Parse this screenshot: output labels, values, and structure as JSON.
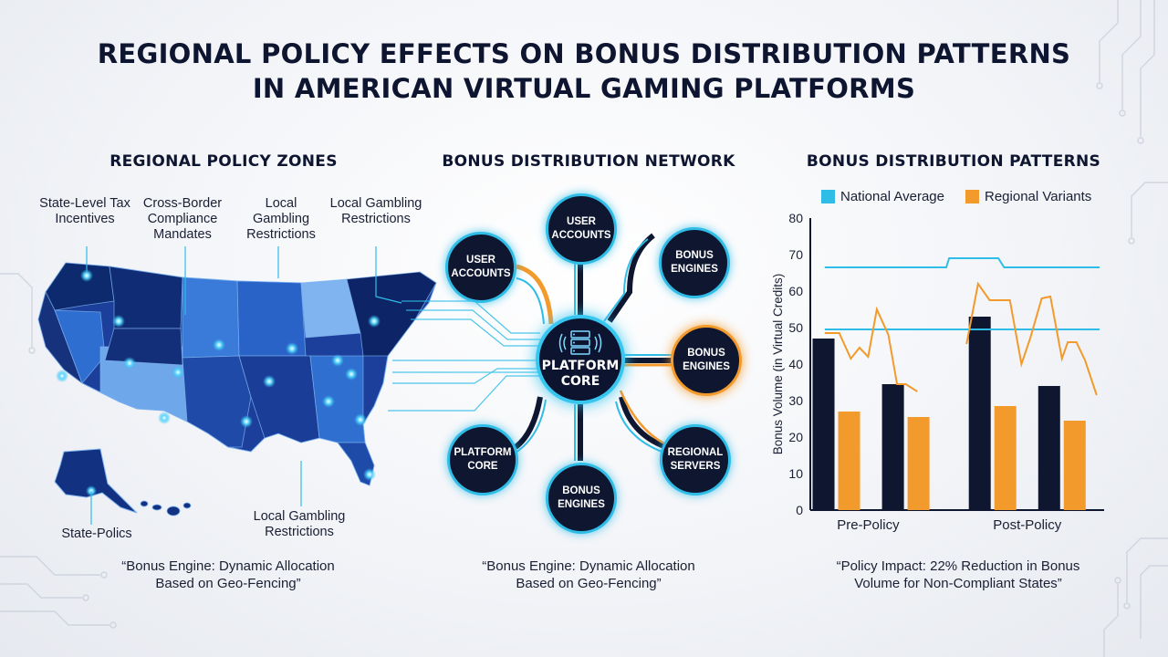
{
  "title": {
    "line1": "REGIONAL POLICY EFFECTS ON BONUS DISTRIBUTION PATTERNS",
    "line2": "IN AMERICAN VIRTUAL GAMING PLATFORMS"
  },
  "map_section": {
    "title": "REGIONAL POLICY ZONES",
    "callouts": [
      "State-Level Tax Incentives",
      "Cross-Border Compliance Mandates",
      "Local Gambling Restrictions",
      "Local Gambling Restrictions"
    ],
    "bottom_callouts": [
      "State-Polics",
      "Local Gambling Restrictions"
    ],
    "caption_line1": "“Bonus Engine: Dynamic Allocation",
    "caption_line2": "Based on Geo-Fencing”"
  },
  "network_section": {
    "title": "BONUS DISTRIBUTION NETWORK",
    "core_line1": "PLATFORM",
    "core_line2": "CORE",
    "nodes": {
      "top": {
        "l1": "USER",
        "l2": "ACCOUNTS"
      },
      "upper_left": {
        "l1": "USER",
        "l2": "ACCOUNTS"
      },
      "upper_right": {
        "l1": "BONUS",
        "l2": "ENGINES"
      },
      "mid_right": {
        "l1": "BONUS",
        "l2": "ENGINES"
      },
      "lower_left": {
        "l1": "PLATFORM",
        "l2": "CORE"
      },
      "lower_right": {
        "l1": "REGIONAL",
        "l2": "SERVERS"
      },
      "bottom": {
        "l1": "BONUS",
        "l2": "ENGINES"
      }
    },
    "caption_line1": "“Bonus Engine: Dynamic Allocation",
    "caption_line2": "Based on Geo-Fencing”"
  },
  "chart_section": {
    "caption_line1": "“Policy Impact: 22% Reduction in Bonus",
    "caption_line2": "Volume for Non-Compliant States”"
  },
  "colors": {
    "navy": "#0e1630",
    "cyan": "#2fbde8",
    "orange": "#f39a2c"
  },
  "chart_data": {
    "type": "bar",
    "title": "BONUS DISTRIBUTION PATTERNS",
    "ylabel": "Bonus Volume (in Virtual Credits)",
    "xlabel": "",
    "ylim": [
      0,
      80
    ],
    "yticks": [
      "0",
      "10",
      "20",
      "30",
      "40",
      "50",
      "60",
      "70",
      "80"
    ],
    "categories": [
      "Pre-Policy",
      "Post-Policy"
    ],
    "legend": [
      "National Average",
      "Regional Variants"
    ],
    "legend_position": "top",
    "bars": [
      {
        "category": "Pre-Policy",
        "series": "National Average",
        "value": 47
      },
      {
        "category": "Pre-Policy",
        "series": "Regional Variants",
        "value": 27
      },
      {
        "category": "Pre-Policy",
        "series": "National Average",
        "value": 34.5
      },
      {
        "category": "Pre-Policy",
        "series": "Regional Variants",
        "value": 25.5
      },
      {
        "category": "Post-Policy",
        "series": "National Average",
        "value": 53
      },
      {
        "category": "Post-Policy",
        "series": "Regional Variants",
        "value": 28.5
      },
      {
        "category": "Post-Policy",
        "series": "National Average",
        "value": 34
      },
      {
        "category": "Post-Policy",
        "series": "Regional Variants",
        "value": 24.5
      }
    ],
    "reference_lines": [
      {
        "series": "National Average",
        "y": [
          66.5,
          66.5,
          66.5,
          69,
          69,
          66.5,
          66.5
        ],
        "x": [
          0.05,
          0.45,
          0.47,
          0.48,
          0.65,
          0.67,
          1.0
        ]
      },
      {
        "series": "National Average",
        "y": [
          49.5,
          49.5
        ],
        "x": [
          0.05,
          1.0
        ]
      }
    ],
    "series_lines": [
      {
        "series": "Regional Variants",
        "x": [
          0.05,
          0.1,
          0.14,
          0.17,
          0.2,
          0.23,
          0.27,
          0.3,
          0.33,
          0.37
        ],
        "y": [
          48.5,
          48.5,
          41.5,
          44.5,
          42,
          55,
          48,
          34.5,
          34.5,
          32.5
        ]
      },
      {
        "series": "Regional Variants",
        "x": [
          0.54,
          0.58,
          0.62,
          0.66,
          0.69,
          0.73,
          0.76,
          0.8,
          0.83,
          0.87,
          0.89,
          0.92,
          0.95,
          0.99
        ],
        "y": [
          45.5,
          62,
          57.5,
          57.5,
          57.5,
          40,
          47,
          58,
          58.5,
          41.5,
          46,
          46,
          41,
          31.5
        ]
      }
    ]
  }
}
